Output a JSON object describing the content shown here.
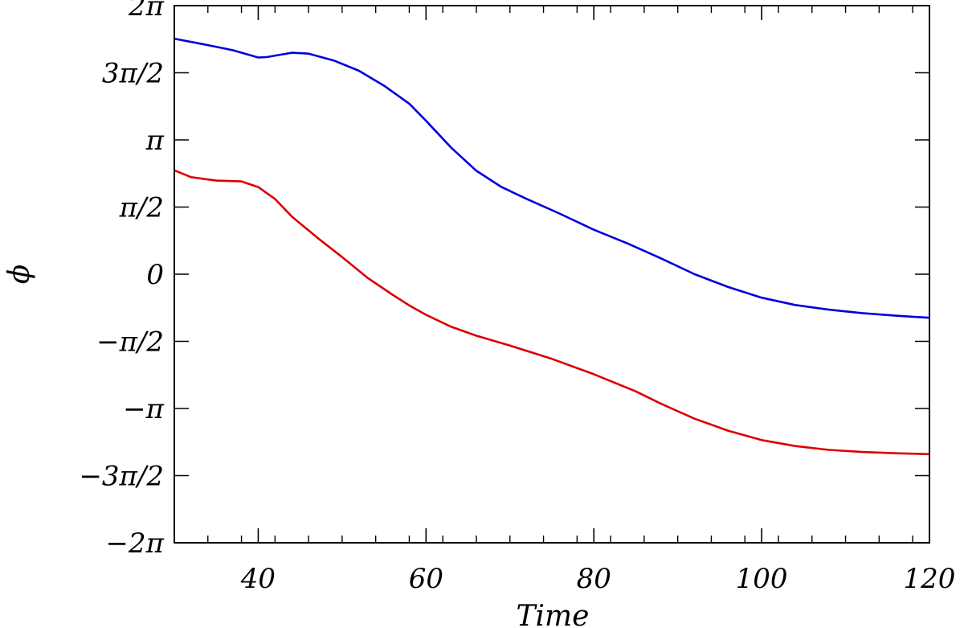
{
  "chart_data": {
    "type": "line",
    "xlabel": "Time",
    "ylabel": "ϕ",
    "xlim": [
      30,
      120
    ],
    "ylim": [
      -6.2832,
      6.2832
    ],
    "x_ticks": [
      {
        "value": 40,
        "label": "40"
      },
      {
        "value": 60,
        "label": "60"
      },
      {
        "value": 80,
        "label": "80"
      },
      {
        "value": 100,
        "label": "100"
      },
      {
        "value": 120,
        "label": "120"
      }
    ],
    "y_ticks": [
      {
        "value": 6.2832,
        "label": "2π"
      },
      {
        "value": 4.7124,
        "label": "3π/2"
      },
      {
        "value": 3.1416,
        "label": "π"
      },
      {
        "value": 1.5708,
        "label": "π/2"
      },
      {
        "value": 0,
        "label": "0"
      },
      {
        "value": -1.5708,
        "label": "−π/2"
      },
      {
        "value": -3.1416,
        "label": "−π"
      },
      {
        "value": -4.7124,
        "label": "−3π/2"
      },
      {
        "value": -6.2832,
        "label": "−2π"
      }
    ],
    "x_minor_step": 4,
    "grid": false,
    "series": [
      {
        "color": "#0000dd",
        "x": [
          30,
          34,
          37,
          40,
          41,
          44,
          46,
          49,
          52,
          55,
          58,
          60,
          63,
          66,
          69,
          72,
          76,
          80,
          84,
          88,
          92,
          96,
          100,
          104,
          108,
          112,
          116,
          120
        ],
        "y": [
          5.51,
          5.36,
          5.24,
          5.07,
          5.08,
          5.18,
          5.16,
          5.0,
          4.76,
          4.41,
          3.99,
          3.59,
          2.96,
          2.42,
          2.04,
          1.76,
          1.41,
          1.04,
          0.72,
          0.37,
          0.0,
          -0.3,
          -0.55,
          -0.72,
          -0.83,
          -0.91,
          -0.97,
          -1.02
        ]
      },
      {
        "color": "#dd0000",
        "x": [
          30,
          32,
          35,
          38,
          40,
          42,
          44,
          47,
          50,
          53,
          56,
          58,
          60,
          63,
          66,
          70,
          75,
          80,
          85,
          88,
          92,
          96,
          100,
          104,
          108,
          112,
          116,
          120
        ],
        "y": [
          2.43,
          2.27,
          2.19,
          2.17,
          2.04,
          1.76,
          1.35,
          0.86,
          0.4,
          -0.08,
          -0.48,
          -0.73,
          -0.95,
          -1.23,
          -1.44,
          -1.67,
          -1.98,
          -2.34,
          -2.74,
          -3.03,
          -3.38,
          -3.66,
          -3.88,
          -4.02,
          -4.11,
          -4.16,
          -4.19,
          -4.21
        ]
      }
    ]
  }
}
